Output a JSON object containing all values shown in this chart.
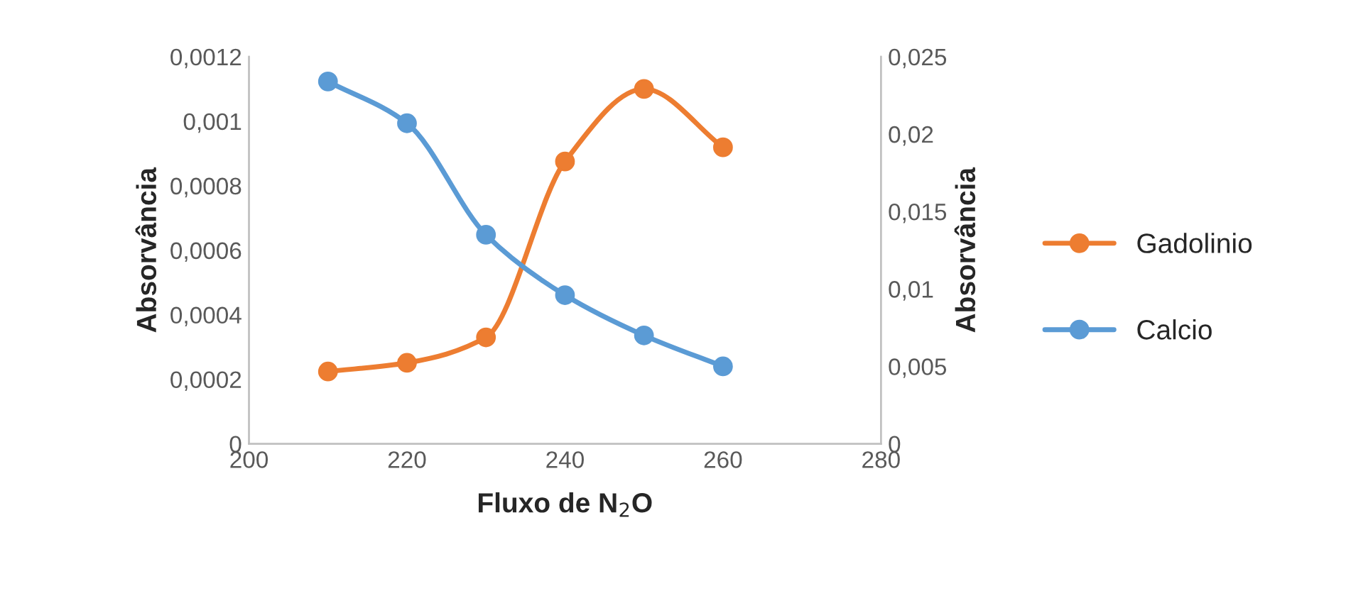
{
  "chart_data": {
    "type": "line",
    "xlabel": "Fluxo de N$_{2}$O",
    "ylabel": "Absorvância",
    "y2label": "Absorvância",
    "x": [
      210,
      220,
      230,
      240,
      250,
      260
    ],
    "series": [
      {
        "name": "Gadolinio",
        "color": "#ed7d31",
        "values": [
          0.000224,
          0.000251,
          0.00033,
          0.000875,
          0.0011,
          0.000919
        ]
      },
      {
        "name": "Calcio",
        "color": "#5b9bd5",
        "axis": "y2",
        "values": [
          0.0234,
          0.0207,
          0.0135,
          0.0096,
          0.007,
          0.005
        ]
      }
    ],
    "xlim": [
      200,
      280
    ],
    "xticks": [
      200,
      220,
      240,
      260,
      280
    ],
    "ylim": [
      0,
      0.0012
    ],
    "yticks": [
      {
        "value": 0,
        "label": "0"
      },
      {
        "value": 0.0002,
        "label": "0,0002"
      },
      {
        "value": 0.0004,
        "label": "0,0004"
      },
      {
        "value": 0.0006,
        "label": "0,0006"
      },
      {
        "value": 0.0008,
        "label": "0,0008"
      },
      {
        "value": 0.001,
        "label": "0,001"
      },
      {
        "value": 0.0012,
        "label": "0,0012"
      }
    ],
    "y2lim": [
      0,
      0.025
    ],
    "y2ticks": [
      {
        "value": 0,
        "label": "0"
      },
      {
        "value": 0.005,
        "label": "0,005"
      },
      {
        "value": 0.01,
        "label": "0,01"
      },
      {
        "value": 0.015,
        "label": "0,015"
      },
      {
        "value": 0.02,
        "label": "0,02"
      },
      {
        "value": 0.025,
        "label": "0,025"
      }
    ],
    "marker": "circle",
    "line_style": "solid",
    "legend": "right",
    "grid": false
  }
}
